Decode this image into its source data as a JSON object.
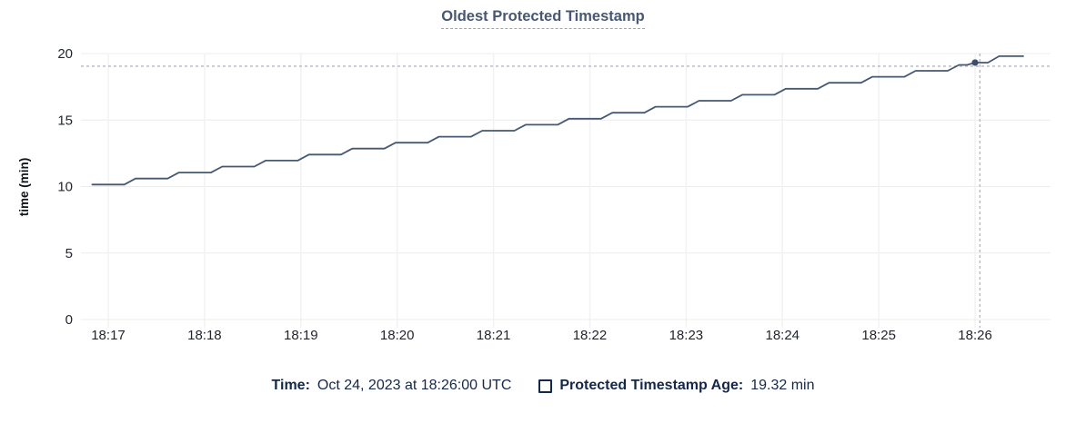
{
  "panel": {
    "title": "Oldest Protected Timestamp"
  },
  "legend": {
    "time_label": "Time:",
    "time_value": "Oct 24, 2023 at 18:26:00 UTC",
    "series_label": "Protected Timestamp Age:",
    "series_value": "19.32 min"
  },
  "colors": {
    "title": "#475872",
    "title_underline": "#93a5c1",
    "line": "#475872",
    "point": "#3e4d68",
    "crosshair": "#a9b8ca",
    "grid_horizontal": "#ececec",
    "grid_vertical": "#f2f2f2",
    "axis_text": "#22262e",
    "legend_text": "#152849"
  },
  "chart_data": {
    "type": "line",
    "title": "Oldest Protected Timestamp",
    "xlabel": "",
    "ylabel": "time (min)",
    "ylim": [
      0,
      20
    ],
    "y_ticks": [
      0,
      5,
      10,
      15,
      20
    ],
    "grid": true,
    "legend_position": "bottom",
    "x_unit": "seconds from left axis edge (axis spans approx 18:16:43 to 18:26:47 UTC)",
    "x_domain": [
      0,
      604
    ],
    "x_ticks": [
      {
        "label": "18:17",
        "t": 17
      },
      {
        "label": "18:18",
        "t": 77
      },
      {
        "label": "18:19",
        "t": 137
      },
      {
        "label": "18:20",
        "t": 197
      },
      {
        "label": "18:21",
        "t": 257
      },
      {
        "label": "18:22",
        "t": 317
      },
      {
        "label": "18:23",
        "t": 377
      },
      {
        "label": "18:24",
        "t": 437
      },
      {
        "label": "18:25",
        "t": 497
      },
      {
        "label": "18:26",
        "t": 557
      }
    ],
    "series": [
      {
        "name": "Protected Timestamp Age",
        "points": [
          [
            7,
            10.15
          ],
          [
            27,
            10.15
          ],
          [
            34,
            10.6
          ],
          [
            54,
            10.6
          ],
          [
            61,
            11.05
          ],
          [
            81,
            11.05
          ],
          [
            88,
            11.5
          ],
          [
            108,
            11.5
          ],
          [
            115,
            11.95
          ],
          [
            135,
            11.95
          ],
          [
            142,
            12.4
          ],
          [
            162,
            12.4
          ],
          [
            169,
            12.85
          ],
          [
            189,
            12.85
          ],
          [
            196,
            13.3
          ],
          [
            216,
            13.3
          ],
          [
            223,
            13.75
          ],
          [
            243,
            13.75
          ],
          [
            250,
            14.2
          ],
          [
            270,
            14.2
          ],
          [
            277,
            14.65
          ],
          [
            297,
            14.65
          ],
          [
            304,
            15.1
          ],
          [
            324,
            15.1
          ],
          [
            331,
            15.55
          ],
          [
            351,
            15.55
          ],
          [
            358,
            16.0
          ],
          [
            378,
            16.0
          ],
          [
            385,
            16.45
          ],
          [
            405,
            16.45
          ],
          [
            412,
            16.9
          ],
          [
            432,
            16.9
          ],
          [
            439,
            17.35
          ],
          [
            459,
            17.35
          ],
          [
            466,
            17.8
          ],
          [
            486,
            17.8
          ],
          [
            493,
            18.25
          ],
          [
            513,
            18.25
          ],
          [
            520,
            18.7
          ],
          [
            540,
            18.7
          ],
          [
            547,
            19.15
          ],
          [
            552,
            19.15
          ],
          [
            557,
            19.32
          ],
          [
            565,
            19.32
          ],
          [
            572,
            19.8
          ],
          [
            587,
            19.8
          ]
        ]
      }
    ],
    "hover_point": {
      "t": 557,
      "value": 19.32,
      "time_label": "18:26",
      "value_label": "19.32 min"
    },
    "crosshair": {
      "t": 560,
      "value": 19.05
    }
  }
}
